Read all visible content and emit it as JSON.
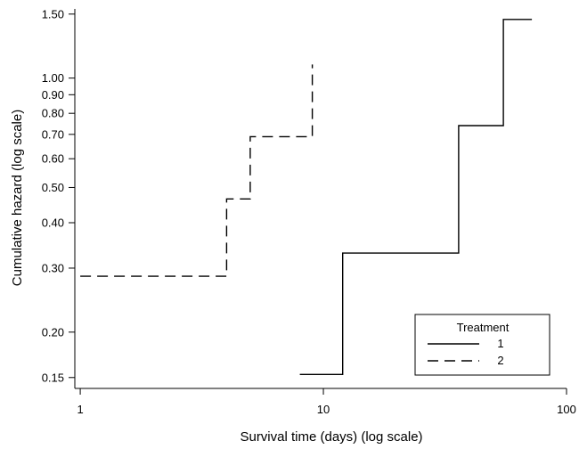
{
  "chart_data": {
    "type": "line",
    "subtype": "step",
    "xlabel": "Survival time (days) (log scale)",
    "ylabel": "Cumulative hazard (log scale)",
    "xscale": "log",
    "yscale": "log",
    "xlim": [
      0.95,
      100
    ],
    "ylim": [
      0.14,
      1.55
    ],
    "x_ticks": [
      1,
      10,
      100
    ],
    "x_tick_labels": [
      "1",
      "10",
      "100"
    ],
    "y_ticks": [
      0.15,
      0.2,
      0.3,
      0.4,
      0.5,
      0.6,
      0.7,
      0.8,
      0.9,
      1.0,
      1.5
    ],
    "y_tick_labels": [
      "0.15",
      "0.20",
      "0.30",
      "0.40",
      "0.50",
      "0.60",
      "0.70",
      "0.80",
      "0.90",
      "1.00",
      "1.50"
    ],
    "grid": false,
    "legend": {
      "title": "Treatment",
      "placement": "bottom-right"
    },
    "series": [
      {
        "name": "1",
        "style": "solid",
        "color": "#000000",
        "x": [
          8,
          12,
          12,
          36,
          36,
          55,
          55,
          72
        ],
        "y": [
          0.153,
          0.153,
          0.33,
          0.33,
          0.74,
          0.74,
          1.45,
          1.45
        ]
      },
      {
        "name": "2",
        "style": "dashed",
        "color": "#000000",
        "x": [
          1,
          4,
          4,
          5,
          5,
          9,
          9
        ],
        "y": [
          0.285,
          0.285,
          0.465,
          0.465,
          0.69,
          0.69,
          1.09
        ]
      }
    ]
  }
}
